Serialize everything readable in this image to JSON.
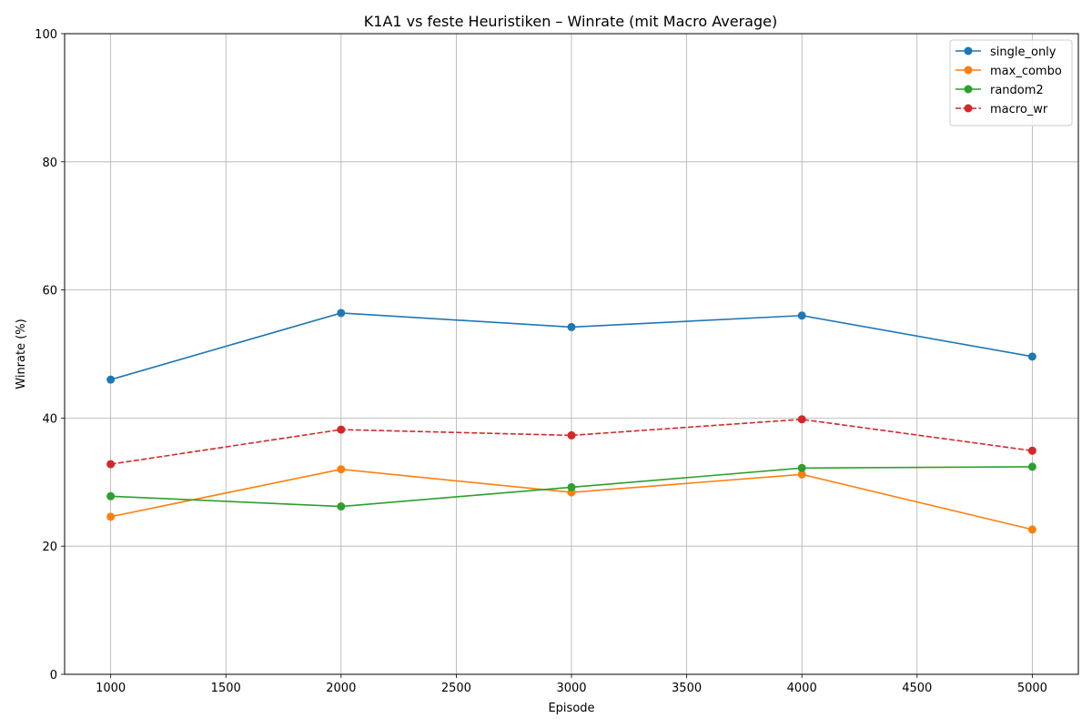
{
  "chart_data": {
    "type": "line",
    "title": "K1A1 vs feste Heuristiken – Winrate (mit Macro Average)",
    "xlabel": "Episode",
    "ylabel": "Winrate (%)",
    "x": [
      1000,
      2000,
      3000,
      4000,
      5000
    ],
    "xlim": [
      800,
      5200
    ],
    "ylim": [
      0,
      100
    ],
    "xticks": [
      "1000",
      "1500",
      "2000",
      "2500",
      "3000",
      "3500",
      "4000",
      "4500",
      "5000"
    ],
    "yticks": [
      "0",
      "20",
      "40",
      "60",
      "80",
      "100"
    ],
    "grid": true,
    "legend_position": "top-right",
    "series": [
      {
        "name": "single_only",
        "values": [
          46.0,
          56.4,
          54.2,
          56.0,
          49.6
        ],
        "color": "#1f77b4",
        "style": "solid"
      },
      {
        "name": "max_combo",
        "values": [
          24.6,
          32.0,
          28.4,
          31.2,
          22.6
        ],
        "color": "#ff7f0e",
        "style": "solid"
      },
      {
        "name": "random2",
        "values": [
          27.8,
          26.2,
          29.2,
          32.2,
          32.4
        ],
        "color": "#2ca02c",
        "style": "solid"
      },
      {
        "name": "macro_wr",
        "values": [
          32.8,
          38.2,
          37.3,
          39.8,
          34.9
        ],
        "color": "#d62728",
        "style": "dashed"
      }
    ]
  }
}
